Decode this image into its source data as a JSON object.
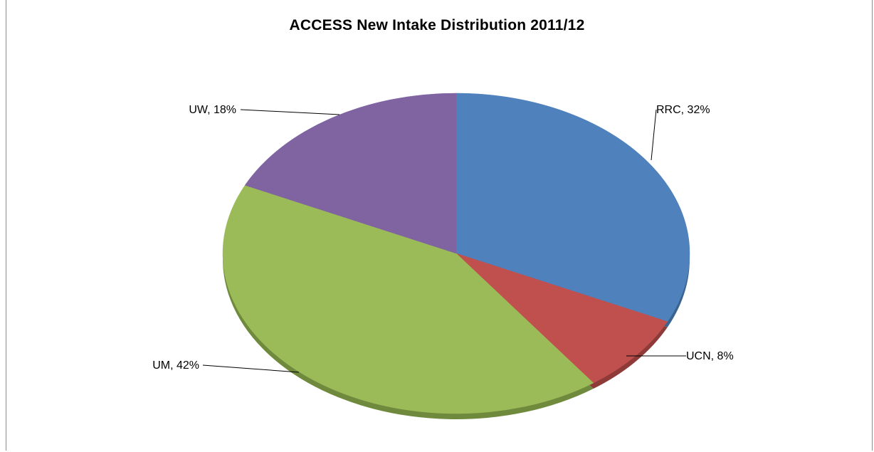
{
  "chart_data": {
    "type": "pie",
    "title": "ACCESS New Intake Distribution 2011/12",
    "slices": [
      {
        "label": "RRC",
        "value": 32,
        "display": "RRC, 32%",
        "color": "#4f81bd",
        "side": "#3a6390"
      },
      {
        "label": "UCN",
        "value": 8,
        "display": "UCN, 8%",
        "color": "#c0504d",
        "side": "#8e3a38"
      },
      {
        "label": "UM",
        "value": 42,
        "display": "UM, 42%",
        "color": "#9bbb59",
        "side": "#6f8a3c"
      },
      {
        "label": "UW",
        "value": 18,
        "display": "UW, 18%",
        "color": "#8064a2",
        "side": "#5d4878"
      }
    ],
    "legend": "none",
    "style": "3d-pie",
    "data_labels": "outside-with-leader-lines"
  }
}
